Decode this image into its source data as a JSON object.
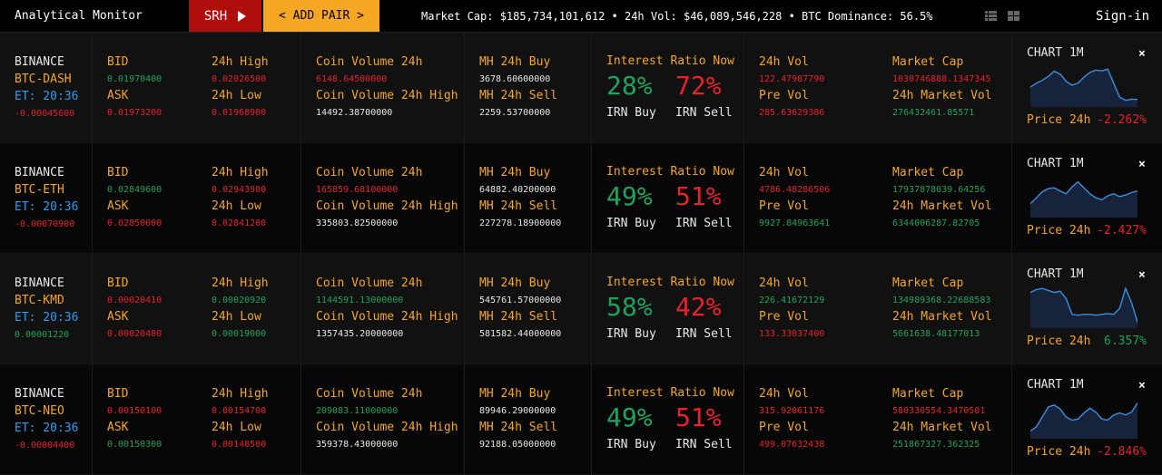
{
  "header": {
    "brand": "Analytical Monitor",
    "srh_label": "SRH",
    "add_pair_label": "< ADD PAIR >",
    "ticker": "Market Cap: $185,734,101,612 • 24h Vol: $46,089,546,228 • BTC Dominance: 56.5%",
    "signin_label": "Sign-in"
  },
  "labels": {
    "bid": "BID",
    "ask": "ASK",
    "high": "24h High",
    "low": "24h Low",
    "coin_vol": "Coin Volume 24h",
    "coin_vol_high": "Coin Volume 24h High",
    "mh_buy": "MH 24h Buy",
    "mh_sell": "MH 24h Sell",
    "irn_title": "Interest Ratio Now",
    "irn_buy": "IRN Buy",
    "irn_sell": "IRN Sell",
    "vol": "24h Vol",
    "pre_vol": "Pre Vol",
    "mcap": "Market Cap",
    "mcap_vol": "24h Market Vol",
    "chart": "CHART 1M",
    "price": "Price 24h",
    "close": "×"
  },
  "rows": [
    {
      "exchange": "BINANCE",
      "pair": "BTC-DASH",
      "et": "ET: 20:36",
      "change": "-0.00045600",
      "bid": "0.01970400",
      "ask": "0.01973200",
      "high": "0.02026500",
      "low": "0.01968900",
      "coin_vol": "6148.64500000",
      "coin_vol_high": "14492.38700000",
      "mh_buy": "3678.60600000",
      "mh_sell": "2259.53700000",
      "irn_buy": "28%",
      "irn_sell": "72%",
      "vol": "122.47987790",
      "pre_vol": "285.63629386",
      "mcap": "1030746888.1347345",
      "mcap_vol": "276432461.85571",
      "price_change": "-2.262%",
      "colors": {
        "change": "#e8212b",
        "bid": "#1fa35c",
        "ask": "#e8212b",
        "high": "#e8212b",
        "low": "#e8212b",
        "coin_vol": "#e8212b",
        "vol": "#e8212b",
        "pre_vol": "#e8212b",
        "mcap": "#e8212b",
        "mcap_vol": "#1fa35c",
        "price_change": "#e8212b"
      },
      "spark": [
        0.45,
        0.55,
        0.62,
        0.72,
        0.85,
        0.78,
        0.6,
        0.5,
        0.55,
        0.7,
        0.82,
        0.88,
        0.86,
        0.9,
        0.55,
        0.2,
        0.12,
        0.15,
        0.14
      ]
    },
    {
      "exchange": "BINANCE",
      "pair": "BTC-ETH",
      "et": "ET: 20:36",
      "change": "-0.00070900",
      "bid": "0.02849600",
      "ask": "0.02850000",
      "high": "0.02943900",
      "low": "0.02841200",
      "coin_vol": "165859.68100000",
      "coin_vol_high": "335803.82500000",
      "mh_buy": "64882.40200000",
      "mh_sell": "227278.18900000",
      "irn_buy": "49%",
      "irn_sell": "51%",
      "vol": "4786.48286506",
      "pre_vol": "9927.84963641",
      "mcap": "17937878039.64256",
      "mcap_vol": "6344006287.82705",
      "price_change": "-2.427%",
      "colors": {
        "change": "#e8212b",
        "bid": "#1fa35c",
        "ask": "#e8212b",
        "high": "#e8212b",
        "low": "#e8212b",
        "coin_vol": "#e8212b",
        "vol": "#e8212b",
        "pre_vol": "#1fa35c",
        "mcap": "#1fa35c",
        "mcap_vol": "#1fa35c",
        "price_change": "#e8212b"
      },
      "spark": [
        0.3,
        0.45,
        0.6,
        0.68,
        0.7,
        0.62,
        0.55,
        0.72,
        0.85,
        0.7,
        0.55,
        0.45,
        0.4,
        0.5,
        0.55,
        0.48,
        0.52,
        0.58,
        0.62
      ]
    },
    {
      "exchange": "BINANCE",
      "pair": "BTC-KMD",
      "et": "ET: 20:36",
      "change": "0.00001220",
      "bid": "0.00020410",
      "ask": "0.00020480",
      "high": "0.00020920",
      "low": "0.00019000",
      "coin_vol": "1144591.13000000",
      "coin_vol_high": "1357435.20000000",
      "mh_buy": "545761.57000000",
      "mh_sell": "581582.44000000",
      "irn_buy": "58%",
      "irn_sell": "42%",
      "vol": "226.41672129",
      "pre_vol": "133.33037400",
      "mcap": "134989368.22688583",
      "mcap_vol": "5661638.48177013",
      "price_change": "6.357%",
      "colors": {
        "change": "#1fa35c",
        "bid": "#e8212b",
        "ask": "#e8212b",
        "high": "#1fa35c",
        "low": "#1fa35c",
        "coin_vol": "#1fa35c",
        "vol": "#1fa35c",
        "pre_vol": "#e8212b",
        "mcap": "#1fa35c",
        "mcap_vol": "#1fa35c",
        "price_change": "#1fa35c"
      },
      "spark": [
        0.85,
        0.92,
        0.95,
        0.9,
        0.85,
        0.88,
        0.7,
        0.3,
        0.28,
        0.3,
        0.3,
        0.28,
        0.3,
        0.32,
        0.3,
        0.45,
        0.95,
        0.6,
        0.1
      ]
    },
    {
      "exchange": "BINANCE",
      "pair": "BTC-NEO",
      "et": "ET: 20:36",
      "change": "-0.00004400",
      "bid": "0.00150100",
      "ask": "0.00150300",
      "high": "0.00154700",
      "low": "0.00148500",
      "coin_vol": "209083.11000000",
      "coin_vol_high": "359378.43000000",
      "mh_buy": "89946.29000000",
      "mh_sell": "92188.05000000",
      "irn_buy": "49%",
      "irn_sell": "51%",
      "vol": "315.92061176",
      "pre_vol": "499.07632438",
      "mcap": "580330554.3470501",
      "mcap_vol": "251867327.362325",
      "price_change": "-2.846%",
      "colors": {
        "change": "#e8212b",
        "bid": "#e8212b",
        "ask": "#1fa35c",
        "high": "#e8212b",
        "low": "#e8212b",
        "coin_vol": "#1fa35c",
        "vol": "#e8212b",
        "pre_vol": "#e8212b",
        "mcap": "#e8212b",
        "mcap_vol": "#1fa35c",
        "price_change": "#e8212b"
      },
      "spark": [
        0.15,
        0.25,
        0.5,
        0.75,
        0.8,
        0.7,
        0.5,
        0.42,
        0.45,
        0.6,
        0.72,
        0.62,
        0.45,
        0.42,
        0.55,
        0.6,
        0.55,
        0.62,
        0.85
      ]
    }
  ]
}
